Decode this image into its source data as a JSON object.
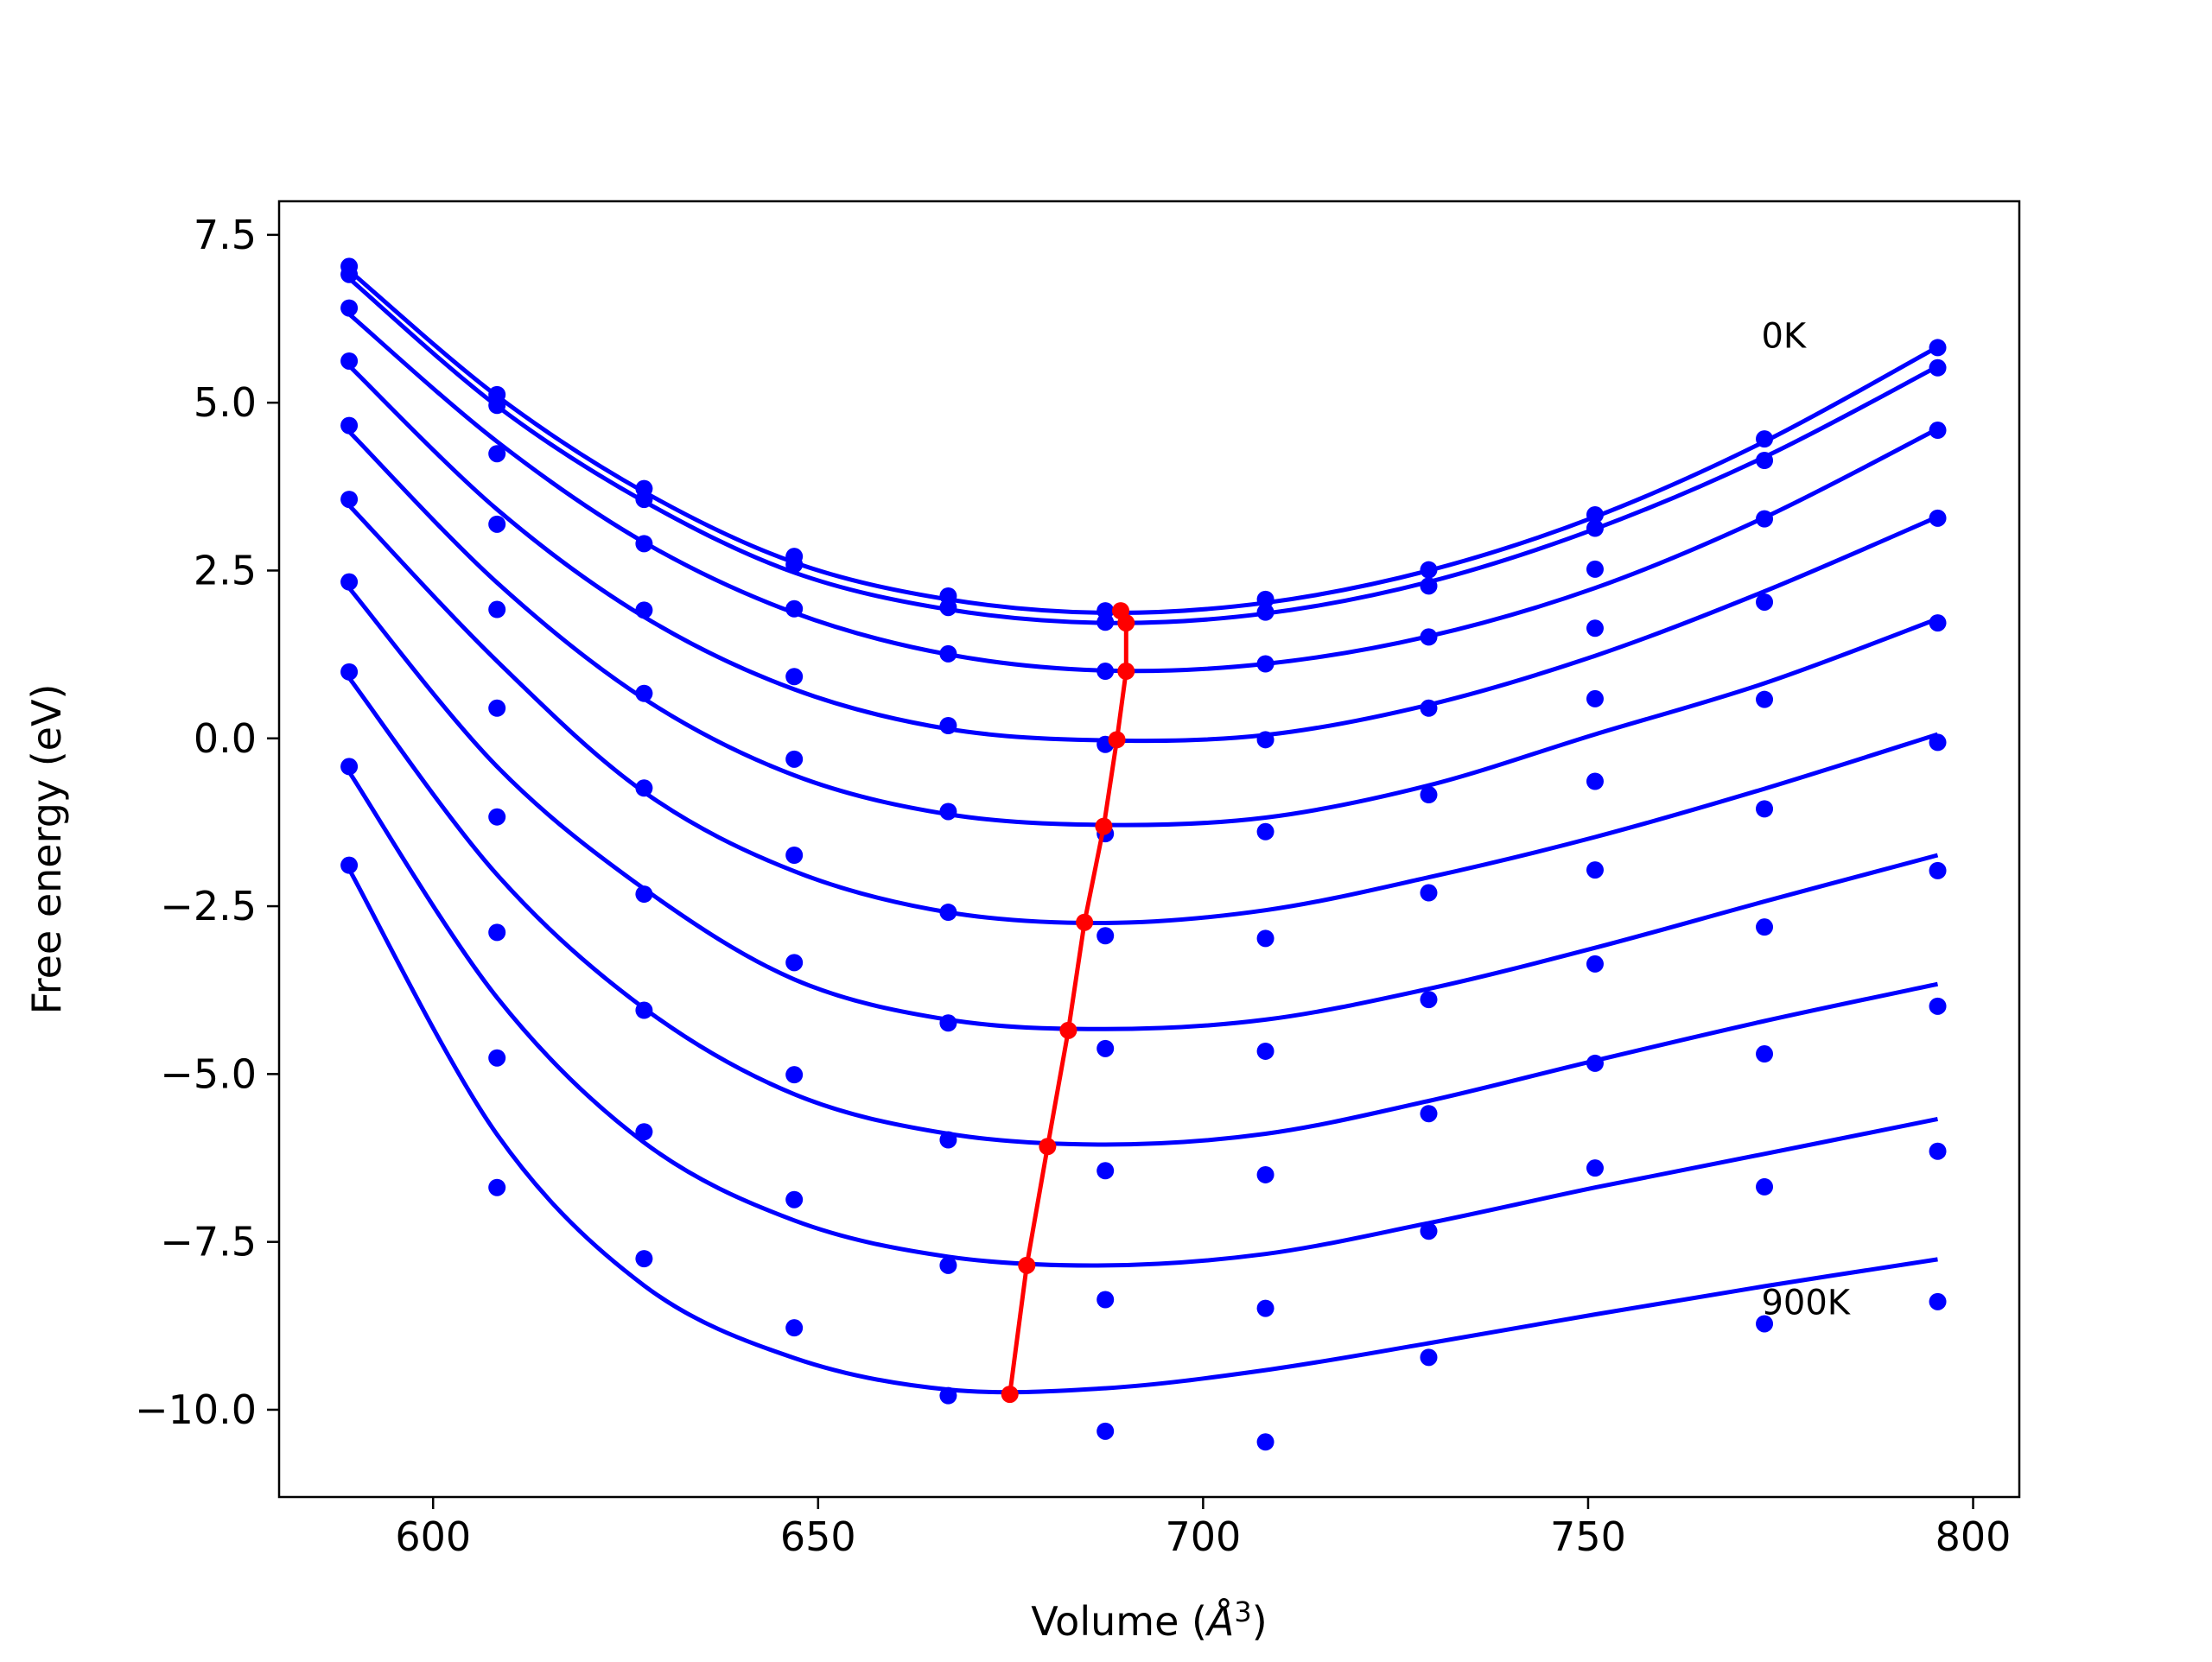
{
  "chart_data": {
    "type": "scatter",
    "xlabel_main": "Volume (",
    "xlabel_unit": "Å",
    "xlabel_sup": "3",
    "xlabel_close": ")",
    "ylabel": "Free energy (eV)",
    "xlim": [
      580,
      806
    ],
    "ylim": [
      -11.3,
      8.0
    ],
    "xticks": [
      600,
      650,
      700,
      750,
      800
    ],
    "xtick_labels": [
      "600",
      "650",
      "700",
      "750",
      "800"
    ],
    "yticks": [
      -10.0,
      -7.5,
      -5.0,
      -2.5,
      0.0,
      2.5,
      5.0,
      7.5
    ],
    "ytick_labels": [
      "−10.0",
      "−7.5",
      "−5.0",
      "−2.5",
      "0.0",
      "2.5",
      "5.0",
      "7.5"
    ],
    "annotations": [
      {
        "text": "0K",
        "x": 772.5,
        "y": 6.0
      },
      {
        "text": "900K",
        "x": 772.5,
        "y": -8.4
      }
    ],
    "colors": {
      "data": "#0000ff",
      "equilibrium": "#ff0000",
      "axes": "#000000"
    },
    "x": [
      589.1,
      608.3,
      627.4,
      646.9,
      666.9,
      687.3,
      708.1,
      729.3,
      750.9,
      772.9,
      795.4
    ],
    "series": [
      {
        "points": [
          7.03,
          5.12,
          3.72,
          2.71,
          2.12,
          1.9,
          2.07,
          2.51,
          3.33,
          4.46,
          5.82
        ],
        "curve": [
          {
            "x": 589.1,
            "y": 6.97
          },
          {
            "x": 608.3,
            "y": 5.1
          },
          {
            "x": 627.4,
            "y": 3.67
          },
          {
            "x": 646.9,
            "y": 2.62
          },
          {
            "x": 666.9,
            "y": 2.07
          },
          {
            "x": 687.3,
            "y": 1.87
          },
          {
            "x": 708.1,
            "y": 2.02
          },
          {
            "x": 729.3,
            "y": 2.5
          },
          {
            "x": 750.9,
            "y": 3.3
          },
          {
            "x": 772.9,
            "y": 4.42
          },
          {
            "x": 795.4,
            "y": 5.83
          }
        ]
      },
      {
        "points": [
          6.91,
          4.96,
          3.56,
          2.59,
          1.95,
          1.73,
          1.88,
          2.27,
          3.13,
          4.14,
          5.52
        ],
        "curve": [
          {
            "x": 589.1,
            "y": 6.85
          },
          {
            "x": 608.3,
            "y": 4.95
          },
          {
            "x": 627.4,
            "y": 3.53
          },
          {
            "x": 646.9,
            "y": 2.47
          },
          {
            "x": 666.9,
            "y": 1.92
          },
          {
            "x": 687.3,
            "y": 1.72
          },
          {
            "x": 708.1,
            "y": 1.86
          },
          {
            "x": 729.3,
            "y": 2.33
          },
          {
            "x": 750.9,
            "y": 3.12
          },
          {
            "x": 772.9,
            "y": 4.19
          },
          {
            "x": 795.4,
            "y": 5.54
          }
        ]
      },
      {
        "points": [
          6.41,
          4.24,
          2.9,
          1.93,
          1.26,
          1.0,
          1.11,
          1.51,
          2.52,
          3.27,
          4.59
        ],
        "curve": [
          {
            "x": 589.1,
            "y": 6.32
          },
          {
            "x": 608.3,
            "y": 4.42
          },
          {
            "x": 627.4,
            "y": 2.92
          },
          {
            "x": 646.9,
            "y": 1.87
          },
          {
            "x": 666.9,
            "y": 1.25
          },
          {
            "x": 687.3,
            "y": 1.01
          },
          {
            "x": 708.1,
            "y": 1.11
          },
          {
            "x": 729.3,
            "y": 1.52
          },
          {
            "x": 750.9,
            "y": 2.24
          },
          {
            "x": 772.9,
            "y": 3.29
          },
          {
            "x": 795.4,
            "y": 4.61
          }
        ]
      },
      {
        "points": [
          5.62,
          3.19,
          1.91,
          0.92,
          0.19,
          -0.09,
          -0.02,
          0.45,
          1.64,
          2.03,
          3.28
        ],
        "curve": [
          {
            "x": 589.1,
            "y": 5.55
          },
          {
            "x": 608.3,
            "y": 3.41
          },
          {
            "x": 627.4,
            "y": 1.81
          },
          {
            "x": 646.9,
            "y": 0.73
          },
          {
            "x": 666.9,
            "y": 0.14
          },
          {
            "x": 687.3,
            "y": -0.03
          },
          {
            "x": 708.1,
            "y": 0.05
          },
          {
            "x": 729.3,
            "y": 0.5
          },
          {
            "x": 750.9,
            "y": 1.23
          },
          {
            "x": 772.9,
            "y": 2.19
          },
          {
            "x": 795.4,
            "y": 3.3
          }
        ]
      },
      {
        "points": [
          4.66,
          1.92,
          0.67,
          -0.31,
          -1.09,
          -1.42,
          -1.39,
          -0.84,
          0.59,
          0.58,
          1.72
        ],
        "curve": [
          {
            "x": 589.1,
            "y": 4.57
          },
          {
            "x": 608.3,
            "y": 2.32
          },
          {
            "x": 627.4,
            "y": 0.59
          },
          {
            "x": 646.9,
            "y": -0.55
          },
          {
            "x": 666.9,
            "y": -1.13
          },
          {
            "x": 687.3,
            "y": -1.29
          },
          {
            "x": 708.1,
            "y": -1.18
          },
          {
            "x": 729.3,
            "y": -0.7
          },
          {
            "x": 750.9,
            "y": 0.06
          },
          {
            "x": 772.9,
            "y": 0.82
          },
          {
            "x": 795.4,
            "y": 1.78
          }
        ]
      },
      {
        "points": [
          3.56,
          0.45,
          -0.74,
          -1.74,
          -2.59,
          -2.94,
          -2.98,
          -2.3,
          -0.64,
          -1.05,
          -0.06
        ],
        "curve": [
          {
            "x": 589.1,
            "y": 3.47
          },
          {
            "x": 608.3,
            "y": 1.15
          },
          {
            "x": 627.4,
            "y": -0.8
          },
          {
            "x": 646.9,
            "y": -1.98
          },
          {
            "x": 666.9,
            "y": -2.59
          },
          {
            "x": 687.3,
            "y": -2.75
          },
          {
            "x": 708.1,
            "y": -2.56
          },
          {
            "x": 729.3,
            "y": -2.07
          },
          {
            "x": 750.9,
            "y": -1.47
          },
          {
            "x": 772.9,
            "y": -0.75
          },
          {
            "x": 795.4,
            "y": 0.06
          }
        ]
      },
      {
        "points": [
          2.33,
          -1.17,
          -2.32,
          -3.34,
          -4.24,
          -4.62,
          -4.66,
          -3.89,
          -1.96,
          -2.81,
          -1.97
        ],
        "curve": [
          {
            "x": 589.1,
            "y": 2.24
          },
          {
            "x": 608.3,
            "y": -0.42
          },
          {
            "x": 627.4,
            "y": -2.24
          },
          {
            "x": 646.9,
            "y": -3.59
          },
          {
            "x": 666.9,
            "y": -4.19
          },
          {
            "x": 687.3,
            "y": -4.33
          },
          {
            "x": 708.1,
            "y": -4.19
          },
          {
            "x": 729.3,
            "y": -3.73
          },
          {
            "x": 750.9,
            "y": -3.12
          },
          {
            "x": 772.9,
            "y": -2.43
          },
          {
            "x": 795.4,
            "y": -1.74
          }
        ]
      },
      {
        "points": [
          0.99,
          -2.89,
          -4.05,
          -5.01,
          -5.98,
          -6.44,
          -6.5,
          -5.59,
          -3.36,
          -4.7,
          -3.99
        ],
        "curve": [
          {
            "x": 589.1,
            "y": 0.9
          },
          {
            "x": 608.3,
            "y": -2.03
          },
          {
            "x": 627.4,
            "y": -4.02
          },
          {
            "x": 646.9,
            "y": -5.3
          },
          {
            "x": 666.9,
            "y": -5.89
          },
          {
            "x": 687.3,
            "y": -6.05
          },
          {
            "x": 708.1,
            "y": -5.89
          },
          {
            "x": 729.3,
            "y": -5.4
          },
          {
            "x": 750.9,
            "y": -4.8
          },
          {
            "x": 772.9,
            "y": -4.21
          },
          {
            "x": 795.4,
            "y": -3.66
          }
        ]
      },
      {
        "points": [
          -0.42,
          -4.76,
          -5.86,
          -6.87,
          -7.85,
          -8.36,
          -8.49,
          -7.34,
          -4.84,
          -6.68,
          -6.15
        ],
        "curve": [
          {
            "x": 589.1,
            "y": -0.5
          },
          {
            "x": 608.3,
            "y": -3.86
          },
          {
            "x": 627.4,
            "y": -6.02
          },
          {
            "x": 646.9,
            "y": -7.18
          },
          {
            "x": 666.9,
            "y": -7.72
          },
          {
            "x": 687.3,
            "y": -7.85
          },
          {
            "x": 708.1,
            "y": -7.68
          },
          {
            "x": 729.3,
            "y": -7.22
          },
          {
            "x": 750.9,
            "y": -6.69
          },
          {
            "x": 772.9,
            "y": -6.19
          },
          {
            "x": 795.4,
            "y": -5.67
          }
        ]
      },
      {
        "points": [
          -1.89,
          -6.69,
          -7.75,
          -8.78,
          -9.79,
          -10.32,
          -10.48,
          -9.22,
          -6.4,
          -8.72,
          -8.39
        ],
        "curve": [
          {
            "x": 589.1,
            "y": -1.95
          },
          {
            "x": 608.3,
            "y": -5.9
          },
          {
            "x": 627.4,
            "y": -8.15
          },
          {
            "x": 646.9,
            "y": -9.23
          },
          {
            "x": 666.9,
            "y": -9.7
          },
          {
            "x": 687.3,
            "y": -9.68
          },
          {
            "x": 708.1,
            "y": -9.41
          },
          {
            "x": 729.3,
            "y": -9.01
          },
          {
            "x": 750.9,
            "y": -8.58
          },
          {
            "x": 772.9,
            "y": -8.16
          },
          {
            "x": 795.4,
            "y": -7.76
          }
        ]
      }
    ],
    "equilibrium": {
      "x": [
        689.3,
        690.0,
        690.0,
        688.8,
        687.1,
        684.6,
        682.5,
        679.8,
        677.1,
        674.9
      ],
      "y": [
        1.9,
        1.72,
        1.0,
        -0.02,
        -1.31,
        -2.74,
        -4.35,
        -6.08,
        -7.85,
        -9.77
      ]
    }
  }
}
